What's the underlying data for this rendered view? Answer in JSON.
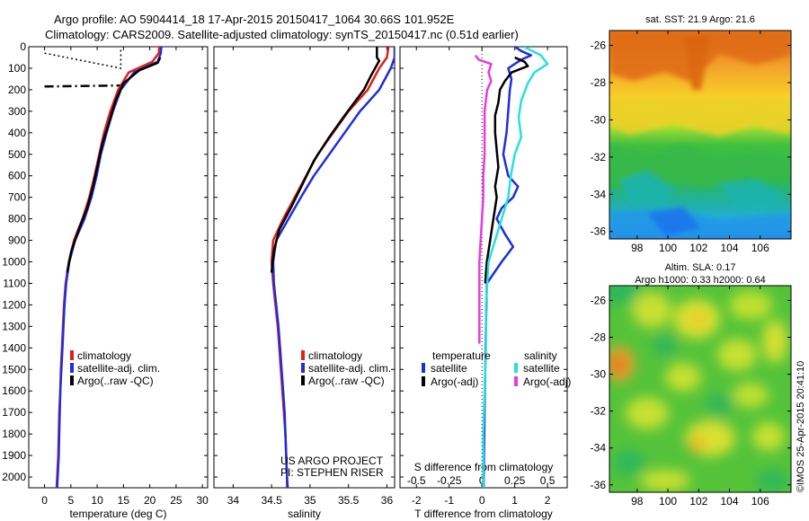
{
  "header": {
    "line1": "Argo profile: AO 5904414_18 17-Apr-2015 20150417_1064 30.66S 101.952E",
    "line2": "Climatology: CARS2009. Satellite-adjusted climatology: synTS_20150417.nc (0.51d earlier)"
  },
  "colors": {
    "climatology": "#e0201a",
    "satellite": "#1c2ee0",
    "argo": "#000000",
    "argo_salinity_diff": "#e83ae0",
    "satellite_salinity_diff": "#27e0e0"
  },
  "chart_data": [
    {
      "type": "line",
      "name": "temperature-profile",
      "xlabel": "temperature (deg C)",
      "xlim": [
        -3,
        31
      ],
      "ylim": [
        0,
        2050
      ],
      "x_ticks": [
        0,
        5,
        10,
        15,
        20,
        25,
        30
      ],
      "y_ticks": [
        0,
        100,
        200,
        300,
        400,
        500,
        600,
        700,
        800,
        900,
        1000,
        1100,
        1200,
        1300,
        1400,
        1500,
        1600,
        1700,
        1800,
        1900,
        2000
      ],
      "legend": [
        "climatology",
        "satellite-adj. clim.",
        "Argo(..raw -QC)"
      ],
      "legend_placement": "bottom-right",
      "series": [
        {
          "name": "climatology",
          "color": "#e0201a",
          "points": [
            [
              21.8,
              0
            ],
            [
              21.7,
              30
            ],
            [
              20.5,
              70
            ],
            [
              16,
              120
            ],
            [
              14,
              200
            ],
            [
              12.5,
              300
            ],
            [
              11.3,
              400
            ],
            [
              10.4,
              500
            ],
            [
              9.5,
              600
            ],
            [
              8.5,
              700
            ],
            [
              7.2,
              800
            ],
            [
              5.6,
              900
            ],
            [
              4.6,
              1000
            ],
            [
              4.0,
              1100
            ],
            [
              3.7,
              1200
            ],
            [
              3.5,
              1300
            ],
            [
              3.3,
              1400
            ],
            [
              3.1,
              1500
            ],
            [
              3.0,
              1600
            ],
            [
              2.8,
              1700
            ],
            [
              2.7,
              1800
            ],
            [
              2.6,
              1900
            ],
            [
              2.4,
              2000
            ],
            [
              2.3,
              2050
            ]
          ]
        },
        {
          "name": "satellite-adj. clim.",
          "color": "#1c2ee0",
          "points": [
            [
              22.2,
              0
            ],
            [
              22.1,
              30
            ],
            [
              21.5,
              70
            ],
            [
              17,
              120
            ],
            [
              14.5,
              200
            ],
            [
              13,
              300
            ],
            [
              11.8,
              400
            ],
            [
              10.7,
              500
            ],
            [
              9.9,
              600
            ],
            [
              8.9,
              700
            ],
            [
              7.6,
              800
            ],
            [
              5.8,
              900
            ],
            [
              4.7,
              1000
            ],
            [
              4.1,
              1100
            ],
            [
              3.8,
              1200
            ],
            [
              3.6,
              1300
            ],
            [
              3.4,
              1400
            ],
            [
              3.2,
              1500
            ],
            [
              3.0,
              1600
            ],
            [
              2.9,
              1700
            ],
            [
              2.8,
              1800
            ],
            [
              2.7,
              1900
            ],
            [
              2.5,
              2000
            ],
            [
              2.4,
              2050
            ]
          ]
        },
        {
          "name": "Argo(..raw -QC)",
          "color": "#000000",
          "points": [
            [
              22.0,
              50
            ],
            [
              21.5,
              75
            ],
            [
              18,
              110
            ],
            [
              15,
              170
            ],
            [
              13.5,
              250
            ],
            [
              12.3,
              350
            ],
            [
              11,
              450
            ],
            [
              10.1,
              550
            ],
            [
              9.2,
              650
            ],
            [
              8.1,
              750
            ],
            [
              6.5,
              850
            ],
            [
              5.1,
              950
            ],
            [
              4.3,
              1050
            ]
          ]
        }
      ],
      "annotations": [
        {
          "style": "dotted",
          "points": [
            [
              0,
              30
            ],
            [
              14.5,
              100
            ],
            [
              14.5,
              0
            ]
          ]
        },
        {
          "style": "dash-dot",
          "points": [
            [
              0,
              185
            ],
            [
              15,
              180
            ]
          ]
        }
      ]
    },
    {
      "type": "line",
      "name": "salinity-profile",
      "xlabel": "salinity",
      "xlim": [
        33.75,
        36.1
      ],
      "ylim": [
        0,
        2050
      ],
      "x_ticks": [
        34,
        34.5,
        35,
        35.5,
        36
      ],
      "legend": [
        "climatology",
        "satellite-adj. clim.",
        "Argo(..raw -QC)"
      ],
      "legend_placement": "bottom-right",
      "notes": [
        "US ARGO PROJECT",
        "PI: STEPHEN RISER"
      ],
      "series": [
        {
          "name": "climatology",
          "color": "#e0201a",
          "points": [
            [
              36.02,
              0
            ],
            [
              36.0,
              50
            ],
            [
              35.9,
              100
            ],
            [
              35.75,
              200
            ],
            [
              35.5,
              300
            ],
            [
              35.3,
              400
            ],
            [
              35.1,
              500
            ],
            [
              34.95,
              600
            ],
            [
              34.8,
              700
            ],
            [
              34.65,
              800
            ],
            [
              34.52,
              900
            ],
            [
              34.5,
              1000
            ],
            [
              34.52,
              1100
            ],
            [
              34.55,
              1200
            ],
            [
              34.58,
              1300
            ],
            [
              34.6,
              1400
            ],
            [
              34.62,
              1500
            ],
            [
              34.64,
              1600
            ],
            [
              34.66,
              1700
            ],
            [
              34.68,
              1800
            ],
            [
              34.69,
              1900
            ],
            [
              34.7,
              2000
            ],
            [
              34.7,
              2050
            ]
          ]
        },
        {
          "name": "satellite-adj. clim.",
          "color": "#1c2ee0",
          "points": [
            [
              36.1,
              0
            ],
            [
              36.1,
              50
            ],
            [
              36.05,
              100
            ],
            [
              35.9,
              200
            ],
            [
              35.65,
              300
            ],
            [
              35.45,
              400
            ],
            [
              35.25,
              500
            ],
            [
              35.05,
              600
            ],
            [
              34.88,
              700
            ],
            [
              34.72,
              800
            ],
            [
              34.56,
              900
            ],
            [
              34.52,
              1000
            ],
            [
              34.53,
              1100
            ],
            [
              34.56,
              1200
            ],
            [
              34.59,
              1300
            ],
            [
              34.61,
              1400
            ],
            [
              34.63,
              1500
            ],
            [
              34.65,
              1600
            ],
            [
              34.67,
              1700
            ],
            [
              34.68,
              1800
            ],
            [
              34.69,
              1900
            ],
            [
              34.7,
              2000
            ],
            [
              34.71,
              2050
            ]
          ]
        },
        {
          "name": "Argo(..raw -QC)",
          "color": "#000000",
          "points": [
            [
              35.87,
              0
            ],
            [
              35.87,
              50
            ],
            [
              35.9,
              65
            ],
            [
              35.8,
              130
            ],
            [
              35.7,
              200
            ],
            [
              35.45,
              320
            ],
            [
              35.25,
              420
            ],
            [
              35.05,
              530
            ],
            [
              34.9,
              640
            ],
            [
              34.75,
              750
            ],
            [
              34.6,
              850
            ],
            [
              34.53,
              950
            ],
            [
              34.5,
              1050
            ]
          ]
        }
      ]
    },
    {
      "type": "line",
      "name": "difference-profile",
      "xlabel": "T difference from climatology",
      "xlabel2": "S difference from climatology",
      "xlim": [
        -2.5,
        2.6
      ],
      "xlim2": [
        -0.625,
        0.65
      ],
      "ylim": [
        0,
        2050
      ],
      "x_ticks": [
        -2,
        -1,
        0,
        1,
        2
      ],
      "x_ticks2": [
        "-0.5",
        "-0.25",
        "0",
        "0.25",
        "0.5"
      ],
      "legend_groups": [
        "temperature",
        "salinity"
      ],
      "legend": [
        "satellite",
        "Argo(-adj)",
        "satellite",
        "Argo(-adj)"
      ],
      "legend_placement": "bottom",
      "series": [
        {
          "name": "satellite",
          "group": "temperature",
          "color": "#1c2ee0",
          "points": [
            [
              1.0,
              0
            ],
            [
              1.2,
              20
            ],
            [
              1.5,
              40
            ],
            [
              1.2,
              60
            ],
            [
              0.8,
              100
            ],
            [
              0.9,
              150
            ],
            [
              0.85,
              200
            ],
            [
              0.8,
              300
            ],
            [
              0.75,
              400
            ],
            [
              0.65,
              500
            ],
            [
              0.8,
              600
            ],
            [
              1.1,
              650
            ],
            [
              0.95,
              700
            ],
            [
              0.6,
              750
            ],
            [
              0.45,
              800
            ],
            [
              0.7,
              870
            ],
            [
              0.95,
              930
            ],
            [
              0.6,
              1000
            ],
            [
              0.15,
              1100
            ],
            [
              0.12,
              1300
            ],
            [
              0.1,
              1500
            ],
            [
              0.08,
              1700
            ],
            [
              0.06,
              1900
            ],
            [
              0.05,
              2050
            ]
          ]
        },
        {
          "name": "Argo(-adj)",
          "group": "temperature",
          "color": "#000000",
          "points": [
            [
              1.0,
              50
            ],
            [
              1.3,
              70
            ],
            [
              1.4,
              90
            ],
            [
              0.9,
              120
            ],
            [
              0.7,
              160
            ],
            [
              0.55,
              200
            ],
            [
              0.5,
              260
            ],
            [
              0.4,
              320
            ],
            [
              0.4,
              400
            ],
            [
              0.45,
              480
            ],
            [
              0.5,
              560
            ],
            [
              0.4,
              650
            ],
            [
              0.45,
              700
            ],
            [
              0.35,
              800
            ],
            [
              0.25,
              900
            ],
            [
              0.15,
              1000
            ],
            [
              0.1,
              1100
            ]
          ]
        },
        {
          "name": "satellite",
          "group": "salinity",
          "color": "#27e0e0",
          "points": [
            [
              0.32,
              0
            ],
            [
              0.45,
              40
            ],
            [
              0.5,
              80
            ],
            [
              0.4,
              120
            ],
            [
              0.35,
              170
            ],
            [
              0.3,
              250
            ],
            [
              0.28,
              330
            ],
            [
              0.3,
              420
            ],
            [
              0.25,
              500
            ],
            [
              0.22,
              600
            ],
            [
              0.2,
              700
            ],
            [
              0.15,
              800
            ],
            [
              0.1,
              900
            ],
            [
              0.05,
              1000
            ],
            [
              0.03,
              1200
            ],
            [
              0.03,
              1400
            ],
            [
              0.02,
              1600
            ],
            [
              0.01,
              1800
            ],
            [
              0.01,
              2000
            ],
            [
              0.01,
              2050
            ]
          ]
        },
        {
          "name": "Argo(-adj)",
          "group": "salinity",
          "color": "#e83ae0",
          "points": [
            [
              -0.05,
              40
            ],
            [
              -0.025,
              60
            ],
            [
              0.07,
              80
            ],
            [
              0.05,
              120
            ],
            [
              0.07,
              160
            ],
            [
              0.04,
              200
            ],
            [
              0.02,
              300
            ],
            [
              0.02,
              400
            ],
            [
              0.02,
              500
            ],
            [
              0.01,
              600
            ],
            [
              0.01,
              700
            ],
            [
              0.0,
              800
            ],
            [
              -0.01,
              900
            ],
            [
              -0.02,
              1000
            ],
            [
              -0.02,
              1100
            ],
            [
              -0.02,
              1200
            ],
            [
              -0.02,
              1300
            ],
            [
              -0.02,
              1380
            ]
          ]
        }
      ]
    },
    {
      "type": "heatmap",
      "name": "sst-map",
      "title": "sat. SST: 21.9 Argo: 21.6",
      "xlim": [
        96.2,
        108
      ],
      "ylim": [
        -36.4,
        -25.2
      ],
      "x_ticks": [
        98,
        100,
        102,
        104,
        106
      ],
      "y_ticks": [
        -26,
        -28,
        -30,
        -32,
        -34,
        -36
      ]
    },
    {
      "type": "heatmap",
      "name": "sla-map",
      "title": "Altim. SLA: 0.17",
      "subtitle": "Argo h1000: 0.33 h2000: 0.64",
      "xlim": [
        96.2,
        108
      ],
      "ylim": [
        -36.4,
        -25.2
      ],
      "x_ticks": [
        98,
        100,
        102,
        104,
        106
      ],
      "y_ticks": [
        -26,
        -28,
        -30,
        -32,
        -34,
        -36
      ]
    }
  ],
  "footer": {
    "stamp": "©IMOS 25-Apr-2015 20:41:10"
  }
}
